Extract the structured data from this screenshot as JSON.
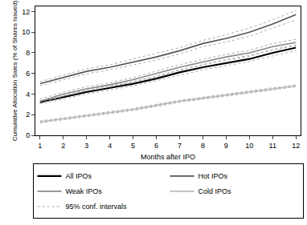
{
  "chart_data": {
    "type": "line",
    "x_label": "Months after IPO",
    "y_label": "Cumulative Allocation Sales (% of Shares Issued)",
    "x": [
      1,
      2,
      3,
      4,
      5,
      6,
      7,
      8,
      9,
      10,
      11,
      12
    ],
    "xlim": [
      0.8,
      12.2
    ],
    "xticks": [
      1,
      2,
      3,
      4,
      5,
      6,
      7,
      8,
      9,
      10,
      11,
      12
    ],
    "ylim": [
      0,
      12.5
    ],
    "yticks": [
      0,
      2,
      4,
      6,
      8,
      10,
      12
    ],
    "grid": false,
    "legend": "bottom",
    "conf_interval": {
      "name": "95% conf. intervals",
      "color": "#aaaaaa",
      "line_style": "dotted"
    },
    "series": [
      {
        "name": "All IPOs",
        "color": "#000000",
        "line_style": "solid",
        "values": [
          3.2,
          3.7,
          4.2,
          4.6,
          5.0,
          5.5,
          6.1,
          6.6,
          7.0,
          7.4,
          8.0,
          8.5
        ],
        "lower": [
          3.05,
          3.55,
          4.0,
          4.4,
          4.8,
          5.3,
          5.85,
          6.35,
          6.75,
          7.15,
          7.7,
          8.2
        ],
        "upper": [
          3.35,
          3.85,
          4.4,
          4.8,
          5.2,
          5.7,
          6.35,
          6.85,
          7.25,
          7.65,
          8.3,
          8.8
        ]
      },
      {
        "name": "Hot IPOs",
        "color": "#555555",
        "line_style": "solid",
        "values": [
          5.0,
          5.6,
          6.2,
          6.6,
          7.1,
          7.6,
          8.2,
          8.9,
          9.4,
          10.0,
          10.8,
          11.7
        ],
        "lower": [
          4.8,
          5.35,
          5.95,
          6.35,
          6.8,
          7.3,
          7.9,
          8.6,
          9.05,
          9.6,
          10.4,
          11.2
        ],
        "upper": [
          5.2,
          5.85,
          6.45,
          6.85,
          7.4,
          7.9,
          8.5,
          9.2,
          9.75,
          10.4,
          11.2,
          12.1
        ]
      },
      {
        "name": "Weak IPOs",
        "color": "#888888",
        "line_style": "solid",
        "values": [
          3.3,
          4.0,
          4.5,
          4.9,
          5.4,
          6.0,
          6.6,
          7.1,
          7.6,
          8.0,
          8.6,
          9.0
        ],
        "lower": [
          3.1,
          3.8,
          4.3,
          4.7,
          5.2,
          5.75,
          6.35,
          6.85,
          7.35,
          7.75,
          8.3,
          8.7
        ],
        "upper": [
          3.5,
          4.2,
          4.7,
          5.1,
          5.6,
          6.25,
          6.85,
          7.35,
          7.85,
          8.25,
          8.9,
          9.3
        ]
      },
      {
        "name": "Cold IPOs",
        "color": "#bbbbbb",
        "line_style": "solid",
        "values": [
          1.3,
          1.6,
          1.9,
          2.2,
          2.5,
          2.9,
          3.3,
          3.6,
          3.9,
          4.2,
          4.5,
          4.8
        ],
        "lower": [
          1.2,
          1.5,
          1.8,
          2.1,
          2.4,
          2.8,
          3.2,
          3.5,
          3.8,
          4.1,
          4.4,
          4.7
        ],
        "upper": [
          1.4,
          1.7,
          2.0,
          2.3,
          2.6,
          3.0,
          3.4,
          3.7,
          4.0,
          4.3,
          4.6,
          4.9
        ]
      }
    ]
  }
}
